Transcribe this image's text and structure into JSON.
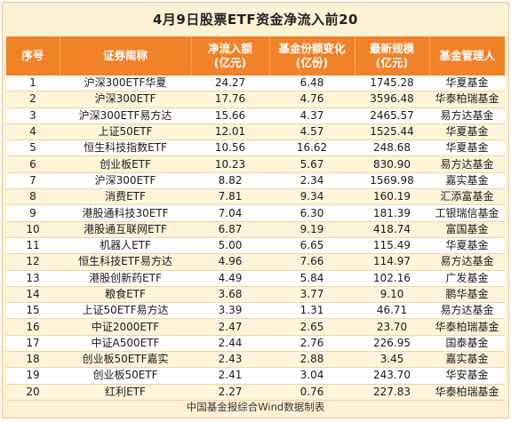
{
  "title": "4月9日股票ETF资金净流入前20",
  "headers": {
    "index": "序号",
    "name": "证券简称",
    "net_inflow": [
      "净流入额",
      "(亿元)"
    ],
    "share_change": [
      "基金份额变化",
      "(亿份)"
    ],
    "latest_size": [
      "最新规模",
      "(亿元)"
    ],
    "manager": "基金管理人"
  },
  "rows": [
    {
      "index": "1",
      "name": "沪深300ETF华夏",
      "net_inflow": "24.27",
      "share_change": "6.48",
      "latest_size": "1745.28",
      "manager": "华夏基金"
    },
    {
      "index": "2",
      "name": "沪深300ETF",
      "net_inflow": "17.76",
      "share_change": "4.76",
      "latest_size": "3596.48",
      "manager": "华泰柏瑞基金"
    },
    {
      "index": "3",
      "name": "沪深300ETF易方达",
      "net_inflow": "15.66",
      "share_change": "4.37",
      "latest_size": "2465.57",
      "manager": "易方达基金"
    },
    {
      "index": "4",
      "name": "上证50ETF",
      "net_inflow": "12.01",
      "share_change": "4.57",
      "latest_size": "1525.44",
      "manager": "华夏基金"
    },
    {
      "index": "5",
      "name": "恒生科技指数ETF",
      "net_inflow": "10.56",
      "share_change": "16.62",
      "latest_size": "248.68",
      "manager": "华夏基金"
    },
    {
      "index": "6",
      "name": "创业板ETF",
      "net_inflow": "10.23",
      "share_change": "5.67",
      "latest_size": "830.90",
      "manager": "易方达基金"
    },
    {
      "index": "7",
      "name": "沪深300ETF",
      "net_inflow": "8.82",
      "share_change": "2.34",
      "latest_size": "1569.98",
      "manager": "嘉实基金"
    },
    {
      "index": "8",
      "name": "消费ETF",
      "net_inflow": "7.81",
      "share_change": "9.34",
      "latest_size": "160.19",
      "manager": "汇添富基金"
    },
    {
      "index": "9",
      "name": "港股通科技30ETF",
      "net_inflow": "7.04",
      "share_change": "6.30",
      "latest_size": "181.39",
      "manager": "工银瑞信基金"
    },
    {
      "index": "10",
      "name": "港股通互联网ETF",
      "net_inflow": "6.87",
      "share_change": "9.19",
      "latest_size": "418.74",
      "manager": "富国基金"
    },
    {
      "index": "11",
      "name": "机器人ETF",
      "net_inflow": "5.00",
      "share_change": "6.65",
      "latest_size": "115.49",
      "manager": "华夏基金"
    },
    {
      "index": "12",
      "name": "恒生科技ETF易方达",
      "net_inflow": "4.96",
      "share_change": "7.66",
      "latest_size": "114.97",
      "manager": "易方达基金"
    },
    {
      "index": "13",
      "name": "港股创新药ETF",
      "net_inflow": "4.49",
      "share_change": "5.84",
      "latest_size": "102.16",
      "manager": "广发基金"
    },
    {
      "index": "14",
      "name": "粮食ETF",
      "net_inflow": "3.68",
      "share_change": "3.77",
      "latest_size": "9.10",
      "manager": "鹏华基金"
    },
    {
      "index": "15",
      "name": "上证50ETF易方达",
      "net_inflow": "3.39",
      "share_change": "1.31",
      "latest_size": "46.71",
      "manager": "易方达基金"
    },
    {
      "index": "16",
      "name": "中证2000ETF",
      "net_inflow": "2.47",
      "share_change": "2.65",
      "latest_size": "23.70",
      "manager": "华泰柏瑞基金"
    },
    {
      "index": "17",
      "name": "中证A500ETF",
      "net_inflow": "2.44",
      "share_change": "2.76",
      "latest_size": "226.95",
      "manager": "国泰基金"
    },
    {
      "index": "18",
      "name": "创业板50ETF嘉实",
      "net_inflow": "2.43",
      "share_change": "2.88",
      "latest_size": "3.45",
      "manager": "嘉实基金"
    },
    {
      "index": "19",
      "name": "创业板50ETF",
      "net_inflow": "2.41",
      "share_change": "3.04",
      "latest_size": "243.70",
      "manager": "华安基金"
    },
    {
      "index": "20",
      "name": "红利ETF",
      "net_inflow": "2.27",
      "share_change": "0.76",
      "latest_size": "227.83",
      "manager": "华泰柏瑞基金"
    }
  ],
  "footer": "中国基金报综合Wind数据制表",
  "colors": {
    "header_bg": "#f08229",
    "header_text": "#ffffff",
    "frame_bg": "#fff1d4",
    "row_alt_bg": "#fff3da"
  }
}
